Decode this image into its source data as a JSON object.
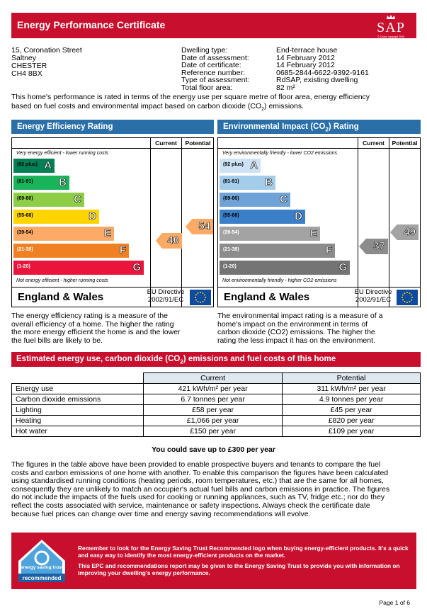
{
  "header": {
    "title": "Energy Performance Certificate",
    "logo_text": "SAP",
    "logo_sub": "© Crown copyright 2009"
  },
  "address": [
    "15, Coronation Street",
    "Saltney",
    "CHESTER",
    "CH4 8BX"
  ],
  "details": {
    "labels": [
      "Dwelling type:",
      "Date of assessment:",
      "Date of certificate:",
      "Reference number:",
      "Type of assessment:",
      "Total floor area:"
    ],
    "values": [
      "End-terrace house",
      "14 February 2012",
      "14 February 2012",
      "0685-2844-6622-9392-9161",
      "RdSAP, existing dwelling",
      "82 m²"
    ]
  },
  "intro": {
    "line1": "This home's performance is rated in terms of the energy use per square metre of floor area, energy efficiency",
    "line2a": "based on fuel costs and environmental impact based on carbon dioxide (CO",
    "line2sub": "2",
    "line2b": ") emissions."
  },
  "eer": {
    "title": "Energy Efficiency Rating",
    "col_current": "Current",
    "col_potential": "Potential",
    "top_caption": "Very energy efficient - lower running costs",
    "bottom_caption": "Not energy efficient - higher running costs",
    "bands": [
      {
        "range": "(92 plus)",
        "letter": "A",
        "color": "#008054"
      },
      {
        "range": "(81-91)",
        "letter": "B",
        "color": "#19b459"
      },
      {
        "range": "(69-80)",
        "letter": "C",
        "color": "#8dce46"
      },
      {
        "range": "(55-68)",
        "letter": "D",
        "color": "#ffd500"
      },
      {
        "range": "(39-54)",
        "letter": "E",
        "color": "#fcaa65"
      },
      {
        "range": "(21-38)",
        "letter": "F",
        "color": "#ef8023"
      },
      {
        "range": "(1-20)",
        "letter": "G",
        "color": "#e9153b"
      }
    ],
    "current": "40",
    "potential": "54",
    "current_color": "#fcaa65",
    "potential_color": "#fcaa65",
    "footer_name": "England & Wales",
    "eu": "EU Directive",
    "eu_code": "2002/91/EC",
    "description": [
      "The energy efficiency rating is a measure of the",
      "overall efficiency of a home. The higher the rating",
      "the more energy efficient the home is and the lower",
      "the fuel bills are likely to be."
    ]
  },
  "eir": {
    "title_a": "Environmental Impact (CO",
    "title_sub": "2",
    "title_b": ") Rating",
    "col_current": "Current",
    "col_potential": "Potential",
    "top_caption": "Very environmentally friendly - lower CO2 emissions",
    "bottom_caption": "Not environmentally friendly - higher CO2 emissions",
    "bands": [
      {
        "range": "(92 plus)",
        "letter": "A",
        "color": "#cde3f5"
      },
      {
        "range": "(81-91)",
        "letter": "B",
        "color": "#a4cdeb"
      },
      {
        "range": "(69-80)",
        "letter": "C",
        "color": "#6fa3d8"
      },
      {
        "range": "(55-68)",
        "letter": "D",
        "color": "#3a7fc7"
      },
      {
        "range": "(39-54)",
        "letter": "E",
        "color": "#a3a3a3"
      },
      {
        "range": "(21-38)",
        "letter": "F",
        "color": "#8c8c8c"
      },
      {
        "range": "(1-20)",
        "letter": "G",
        "color": "#747474"
      }
    ],
    "current": "37",
    "potential": "49",
    "current_color": "#8c8c8c",
    "potential_color": "#a3a3a3",
    "footer_name": "England & Wales",
    "eu": "EU Directive",
    "eu_code": "2002/91/EC",
    "description": [
      "The environmental impact rating is a measure of a",
      "home's impact on the environment in terms of",
      "carbon dioxide (CO2) emissions. The higher the",
      "rating the less impact it has on the environment."
    ]
  },
  "estimate": {
    "title_a": "Estimated energy use, carbon dioxide (CO",
    "title_sub": "2",
    "title_b": ") emissions and fuel costs of this home",
    "col_current": "Current",
    "col_potential": "Potential",
    "rows": [
      {
        "label": "Energy use",
        "current": "421 kWh/m² per year",
        "potential": "311 kWh/m² per year"
      },
      {
        "label": "Carbon dioxide emissions",
        "current": "6.7 tonnes per year",
        "potential": "4.9 tonnes per year"
      },
      {
        "label": "Lighting",
        "current": "£58 per year",
        "potential": "£45 per year"
      },
      {
        "label": "Heating",
        "current": "£1,066 per year",
        "potential": "£820 per year"
      },
      {
        "label": "Hot water",
        "current": "£150 per year",
        "potential": "£109 per year"
      }
    ],
    "save_text": "You could save up to £300 per year"
  },
  "paragraph": [
    "The figures in the table above have been provided to enable prospective buyers and tenants to compare the fuel",
    "costs and carbon emissions of one home with another. To enable this comparison the figures have been calculated",
    "using standardised running conditions (heating periods, room temperatures, etc.) that are the same for all homes,",
    "consequently they are unlikely to match an occupier's actual fuel bills and carbon emissions in practice. The figures",
    "do not include the impacts of the fuels used for cooking or running appliances, such as TV, fridge etc.; nor do they",
    "reflect the costs associated with service, maintenance or safety inspections. Always check the certificate date",
    "because fuel prices can change over time and energy saving recommendations will evolve."
  ],
  "est_box": {
    "logo_line1": "energy saving trust",
    "logo_line2": "recommended",
    "text1": "Remember to look for the Energy Saving Trust Recommended logo when buying energy-efficient products. It's a quick and easy way to identify the most energy-efficient products on the market.",
    "text2": "This EPC and recommendations report may be given to the Energy Saving Trust to provide you with information on improving your dwelling's energy performance."
  },
  "page": "Page 1 of 6"
}
